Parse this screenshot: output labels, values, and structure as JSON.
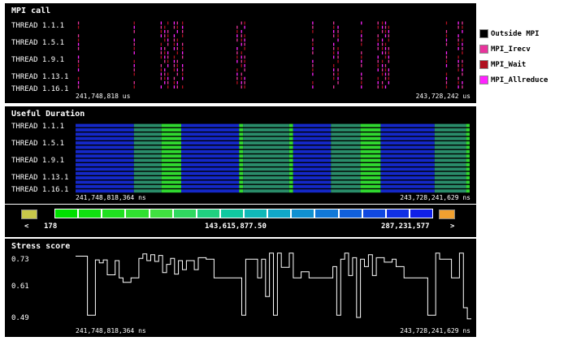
{
  "mpi_panel": {
    "title": "MPI call",
    "threads": [
      "THREAD 1.1.1",
      "THREAD 1.5.1",
      "THREAD 1.9.1",
      "THREAD 1.13.1",
      "THREAD 1.16.1"
    ],
    "time_start": "241,748,818 us",
    "time_end": "243,728,242 us"
  },
  "legend": [
    {
      "label": "Outside MPI",
      "color": "#000000"
    },
    {
      "label": "MPI_Irecv",
      "color": "#e8349c"
    },
    {
      "label": "MPI_Wait",
      "color": "#b01020"
    },
    {
      "label": "MPI_Allreduce",
      "color": "#ff22ff"
    }
  ],
  "useful_panel": {
    "title": "Useful Duration",
    "threads": [
      "THREAD 1.1.1",
      "THREAD 1.5.1",
      "THREAD 1.9.1",
      "THREAD 1.13.1",
      "THREAD 1.16.1"
    ],
    "time_start": "241,748,818,364 ns",
    "time_end": "243,728,241,629 ns",
    "colors": {
      "blue": "#1428c8",
      "teal": "#2a8c6a",
      "green": "#30d830"
    }
  },
  "gradient": {
    "min_label": "178",
    "mid_label": "143,615,877.50",
    "max_label": "287,231,577",
    "left_arrow": "<",
    "right_arrow": ">",
    "below_color": "#c8c84a",
    "above_color": "#f0a030",
    "colors": [
      "#00e000",
      "#10e010",
      "#20e020",
      "#30e030",
      "#40e040",
      "#30d860",
      "#20d080",
      "#10c8a0",
      "#10b8b8",
      "#10a8c8",
      "#1090d0",
      "#1078d8",
      "#1060dc",
      "#1048e0",
      "#1030e4",
      "#1020e8"
    ]
  },
  "stress_panel": {
    "title": "Stress score",
    "y_labels": [
      "0.73",
      "0.61",
      "0.49"
    ],
    "time_start": "241,748,818,364 ns",
    "time_end": "243,728,241,629 ns"
  }
}
